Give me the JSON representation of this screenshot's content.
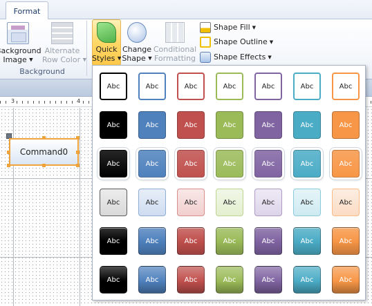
{
  "tabs": {
    "format_label": "Format"
  },
  "ribbon": {
    "background_image": {
      "line1": "Background",
      "line2": "Image"
    },
    "alternate_row_color": {
      "line1": "Alternate",
      "line2": "Row Color"
    },
    "quick_styles": {
      "line1": "Quick",
      "line2": "Styles"
    },
    "change_shape": {
      "line1": "Change",
      "line2": "Shape"
    },
    "conditional_formatting": {
      "line1": "Conditional",
      "line2": "Formatting"
    },
    "shape_fill": "Shape Fill",
    "shape_outline": "Shape Outline",
    "shape_effects": "Shape Effects",
    "group_background": "Background"
  },
  "ruler": {
    "n3": "3",
    "n4": "4"
  },
  "form": {
    "command_caption": "Command0"
  },
  "gallery": {
    "swatch_text": "Abc",
    "theme_colors": [
      "#000000",
      "#4f81bd",
      "#c0504d",
      "#9bbb59",
      "#8064a2",
      "#4bacc6",
      "#f79646"
    ],
    "light_fills": [
      "#d9d9d9",
      "#cfdcf1",
      "#f2cfcf",
      "#e3efcf",
      "#ddd4ea",
      "#cdeaf1",
      "#fbdcc4"
    ],
    "rows": [
      "colored-outline",
      "colored-fill",
      "subtle-bevel",
      "light-gradient",
      "moderate-gloss",
      "intense-effect"
    ]
  }
}
